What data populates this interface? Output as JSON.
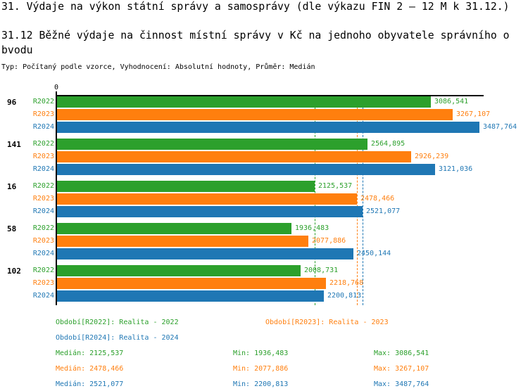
{
  "header": {
    "title": "31. Výdaje na výkon státní správy a samosprávy (dle výkazu FIN 2 – 12 M k 31.12.)",
    "subtitle": "31.12 Běžné výdaje na činnost místní správy v Kč na jednoho obyvatele správního obvodu",
    "meta": "Typ: Počítaný podle vzorce, Vyhodnocení: Absolutní hodnoty, Průměr: Medián"
  },
  "colors": {
    "r2022": "#2ca02c",
    "r2023": "#ff7f0e",
    "r2024": "#1f77b4",
    "axis": "#000000"
  },
  "chart_data": {
    "type": "bar",
    "orientation": "horizontal",
    "origin_tick_label": "0",
    "xlim": [
      0,
      3517
    ],
    "grid": false,
    "categories": [
      "96",
      "141",
      "16",
      "58",
      "102"
    ],
    "series": [
      {
        "name": "R2022",
        "color": "#2ca02c",
        "values": [
          3086.541,
          2564.895,
          2125.537,
          1936.483,
          2008.731
        ]
      },
      {
        "name": "R2023",
        "color": "#ff7f0e",
        "values": [
          3267.107,
          2926.239,
          2478.466,
          2077.886,
          2218.768
        ]
      },
      {
        "name": "R2024",
        "color": "#1f77b4",
        "values": [
          3487.764,
          3121.036,
          2521.077,
          2450.144,
          2200.813
        ]
      }
    ],
    "median_lines": [
      {
        "series": "R2022",
        "value": 2125.537,
        "color": "#2ca02c"
      },
      {
        "series": "R2023",
        "value": 2478.466,
        "color": "#ff7f0e"
      },
      {
        "series": "R2024",
        "value": 2521.077,
        "color": "#1f77b4"
      }
    ],
    "value_label_decimals": 3,
    "decimal_separator": ","
  },
  "legend": {
    "items": [
      {
        "id": "r2022",
        "text": "Období[R2022]: Realita - 2022",
        "color": "#2ca02c"
      },
      {
        "id": "r2023",
        "text": "Období[R2023]: Realita - 2023",
        "color": "#ff7f0e"
      },
      {
        "id": "r2024",
        "text": "Období[R2024]: Realita - 2024",
        "color": "#1f77b4"
      }
    ]
  },
  "stats": {
    "rows": [
      {
        "id": "r2022",
        "color": "#2ca02c",
        "median": "Medián: 2125,537",
        "min": "Min: 1936,483",
        "max": "Max: 3086,541"
      },
      {
        "id": "r2023",
        "color": "#ff7f0e",
        "median": "Medián: 2478,466",
        "min": "Min: 2077,886",
        "max": "Max: 3267,107"
      },
      {
        "id": "r2024",
        "color": "#1f77b4",
        "median": "Medián: 2521,077",
        "min": "Min: 2200,813",
        "max": "Max: 3487,764"
      }
    ]
  }
}
